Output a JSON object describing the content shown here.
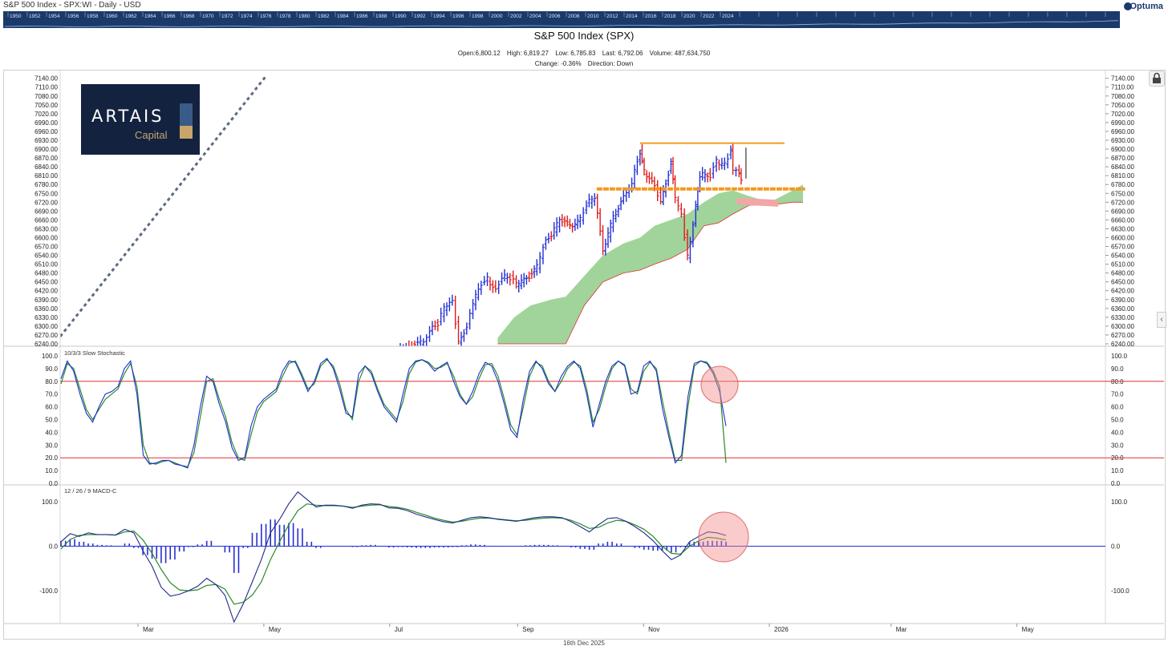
{
  "header": {
    "caption": "S&P 500 Index - SPX:WI - Daily - USD",
    "brand": "Optuma"
  },
  "timeline": {
    "years": [
      "1950",
      "1952",
      "1954",
      "1956",
      "1958",
      "1960",
      "1962",
      "1964",
      "1966",
      "1968",
      "1970",
      "1972",
      "1974",
      "1976",
      "1978",
      "1980",
      "1982",
      "1984",
      "1986",
      "1988",
      "1990",
      "1992",
      "1994",
      "1996",
      "1998",
      "2000",
      "2002",
      "2004",
      "2006",
      "2008",
      "2010",
      "2012",
      "2014",
      "2016",
      "2018",
      "2020",
      "2022",
      "2024"
    ]
  },
  "title": "S&P 500 Index (SPX)",
  "stats": {
    "open": "Open:6,800.12",
    "high": "High: 6,819.27",
    "low": "Low: 6,785.83",
    "last": "Last: 6,792.06",
    "volume": "Volume: 487,634,750",
    "change": "Change: -0.36%",
    "direction": "Direction: Down"
  },
  "logo": {
    "name": "ARTAIS",
    "sub": "Capital"
  },
  "footer_date": "16th Dec 2025",
  "colors": {
    "up_bar": "#1f2fd6",
    "down_bar": "#e01b1b",
    "cloud_green": "#8fcc8a",
    "cloud_red": "#f2a6a6",
    "resistance": "#f39a1d",
    "trend": "#5a6a80",
    "stoch_k": "#1f2fd6",
    "stoch_d": "#2a8a2a",
    "macd": "#1f2a8a",
    "signal": "#2a8a2a",
    "histogram": "#2530d0",
    "level": "#e03030",
    "highlight": "#f28b8b"
  },
  "chart_data": [
    {
      "type": "ohlc",
      "title": "S&P 500 Index (SPX)",
      "ylim": [
        6240,
        7150
      ],
      "yticks": [
        "7140.00",
        "7110.00",
        "7080.00",
        "7050.00",
        "7020.00",
        "6990.00",
        "6960.00",
        "6930.00",
        "6900.00",
        "6870.00",
        "6840.00",
        "6810.00",
        "6780.00",
        "6750.00",
        "6720.00",
        "6690.00",
        "6660.00",
        "6630.00",
        "6600.00",
        "6570.00",
        "6540.00",
        "6510.00",
        "6480.00",
        "6450.00",
        "6420.00",
        "6390.00",
        "6360.00",
        "6330.00",
        "6300.00",
        "6270.00",
        "6240.00"
      ],
      "x_months": [
        "Mar",
        "May",
        "Jul",
        "Sep",
        "Nov",
        "2026",
        "Mar",
        "May"
      ],
      "close_series": [
        [
          "2025-07-01",
          6205
        ],
        [
          "2025-07-08",
          6232
        ],
        [
          "2025-07-15",
          6245
        ],
        [
          "2025-07-18",
          6290
        ],
        [
          "2025-07-22",
          6310
        ],
        [
          "2025-07-25",
          6360
        ],
        [
          "2025-07-29",
          6380
        ],
        [
          "2025-08-01",
          6250
        ],
        [
          "2025-08-05",
          6300
        ],
        [
          "2025-08-08",
          6380
        ],
        [
          "2025-08-12",
          6440
        ],
        [
          "2025-08-15",
          6460
        ],
        [
          "2025-08-19",
          6420
        ],
        [
          "2025-08-22",
          6470
        ],
        [
          "2025-08-26",
          6465
        ],
        [
          "2025-08-29",
          6440
        ],
        [
          "2025-09-03",
          6460
        ],
        [
          "2025-09-08",
          6500
        ],
        [
          "2025-09-11",
          6575
        ],
        [
          "2025-09-15",
          6610
        ],
        [
          "2025-09-19",
          6660
        ],
        [
          "2025-09-24",
          6640
        ],
        [
          "2025-09-29",
          6660
        ],
        [
          "2025-10-02",
          6715
        ],
        [
          "2025-10-06",
          6740
        ],
        [
          "2025-10-10",
          6552
        ],
        [
          "2025-10-15",
          6670
        ],
        [
          "2025-10-20",
          6735
        ],
        [
          "2025-10-24",
          6790
        ],
        [
          "2025-10-28",
          6890
        ],
        [
          "2025-10-30",
          6822
        ],
        [
          "2025-11-04",
          6771
        ],
        [
          "2025-11-07",
          6728
        ],
        [
          "2025-11-12",
          6850
        ],
        [
          "2025-11-14",
          6734
        ],
        [
          "2025-11-17",
          6672
        ],
        [
          "2025-11-20",
          6538
        ],
        [
          "2025-11-24",
          6705
        ],
        [
          "2025-11-26",
          6812
        ],
        [
          "2025-12-01",
          6812
        ],
        [
          "2025-12-04",
          6857
        ],
        [
          "2025-12-08",
          6846
        ],
        [
          "2025-12-11",
          6901
        ],
        [
          "2025-12-12",
          6827
        ],
        [
          "2025-12-15",
          6816
        ],
        [
          "2025-12-16",
          6792
        ]
      ],
      "cloud_top": [
        [
          "2025-08-20",
          6260
        ],
        [
          "2025-08-28",
          6330
        ],
        [
          "2025-09-05",
          6370
        ],
        [
          "2025-09-15",
          6390
        ],
        [
          "2025-09-22",
          6400
        ],
        [
          "2025-10-01",
          6470
        ],
        [
          "2025-10-10",
          6540
        ],
        [
          "2025-10-20",
          6580
        ],
        [
          "2025-10-28",
          6600
        ],
        [
          "2025-11-04",
          6640
        ],
        [
          "2025-11-12",
          6660
        ],
        [
          "2025-11-20",
          6680
        ],
        [
          "2025-11-28",
          6720
        ],
        [
          "2025-12-05",
          6750
        ],
        [
          "2025-12-12",
          6760
        ],
        [
          "2025-12-20",
          6740
        ],
        [
          "2025-12-30",
          6720
        ],
        [
          "2026-01-10",
          6760
        ],
        [
          "2026-01-15",
          6780
        ]
      ],
      "cloud_bottom": [
        [
          "2025-08-20",
          6240
        ],
        [
          "2025-09-15",
          6240
        ],
        [
          "2025-09-22",
          6240
        ],
        [
          "2025-10-01",
          6370
        ],
        [
          "2025-10-10",
          6450
        ],
        [
          "2025-10-20",
          6480
        ],
        [
          "2025-10-28",
          6490
        ],
        [
          "2025-11-04",
          6510
        ],
        [
          "2025-11-12",
          6530
        ],
        [
          "2025-11-20",
          6560
        ],
        [
          "2025-11-28",
          6640
        ],
        [
          "2025-12-05",
          6650
        ],
        [
          "2025-12-12",
          6680
        ],
        [
          "2025-12-20",
          6710
        ],
        [
          "2025-12-30",
          6710
        ],
        [
          "2026-01-10",
          6720
        ],
        [
          "2026-01-15",
          6720
        ]
      ],
      "resistance_line": 6920,
      "support_line": 6765,
      "trendline": [
        [
          "2025-01-20",
          6265
        ],
        [
          "2025-04-30",
          7150
        ]
      ]
    },
    {
      "type": "line",
      "title": "10/3/3 Slow Stochastic",
      "ylim": [
        0,
        100
      ],
      "yticks": [
        "100.0",
        "90.0",
        "80.0",
        "70.0",
        "60.0",
        "50.0",
        "40.0",
        "30.0",
        "20.0",
        "10.0",
        "0.0"
      ],
      "levels": [
        80,
        20
      ],
      "series": [
        {
          "name": "%K",
          "values": [
            82,
            96,
            88,
            70,
            55,
            48,
            60,
            70,
            72,
            76,
            90,
            96,
            70,
            22,
            15,
            16,
            18,
            18,
            15,
            14,
            12,
            30,
            60,
            84,
            80,
            62,
            48,
            28,
            18,
            20,
            45,
            60,
            66,
            70,
            74,
            88,
            96,
            95,
            84,
            72,
            80,
            94,
            98,
            90,
            74,
            55,
            52,
            86,
            92,
            86,
            72,
            60,
            54,
            48,
            70,
            90,
            96,
            97,
            94,
            88,
            92,
            95,
            80,
            68,
            62,
            72,
            86,
            95,
            92,
            80,
            62,
            42,
            36,
            66,
            88,
            96,
            90,
            78,
            72,
            84,
            92,
            96,
            90,
            70,
            44,
            62,
            80,
            92,
            96,
            92,
            70,
            72,
            92,
            96,
            88,
            58,
            36,
            16,
            22,
            68,
            94,
            96,
            94,
            86,
            72,
            45
          ]
        },
        {
          "name": "%D",
          "values": [
            78,
            94,
            90,
            74,
            58,
            50,
            58,
            66,
            70,
            74,
            86,
            94,
            76,
            30,
            16,
            15,
            17,
            18,
            16,
            14,
            13,
            24,
            52,
            80,
            82,
            66,
            52,
            32,
            20,
            18,
            38,
            56,
            64,
            68,
            72,
            84,
            94,
            96,
            86,
            74,
            78,
            92,
            97,
            92,
            78,
            58,
            50,
            80,
            92,
            88,
            74,
            62,
            56,
            50,
            64,
            86,
            95,
            97,
            95,
            90,
            91,
            94,
            84,
            70,
            62,
            68,
            82,
            93,
            94,
            84,
            66,
            46,
            38,
            60,
            84,
            95,
            92,
            80,
            72,
            80,
            90,
            95,
            92,
            74,
            48,
            58,
            76,
            90,
            96,
            93,
            74,
            70,
            88,
            95,
            90,
            64,
            40,
            18,
            18,
            60,
            92,
            96,
            95,
            88,
            76,
            16
          ]
        }
      ]
    },
    {
      "type": "line",
      "title": "12 / 26 / 9 MACD-C",
      "ylim": [
        -170,
        125
      ],
      "yticks": [
        "100.0",
        "0.0",
        "-100.0"
      ],
      "series": [
        {
          "name": "MACD",
          "values": [
            10,
            28,
            22,
            30,
            26,
            26,
            25,
            38,
            30,
            -10,
            -45,
            -92,
            -112,
            -108,
            -100,
            -90,
            -72,
            -86,
            -110,
            -170,
            -130,
            -80,
            -30,
            30,
            60,
            95,
            122,
            105,
            88,
            92,
            92,
            90,
            85,
            92,
            95,
            94,
            86,
            85,
            80,
            72,
            66,
            60,
            55,
            52,
            58,
            64,
            66,
            64,
            60,
            58,
            56,
            60,
            64,
            66,
            66,
            64,
            55,
            44,
            32,
            48,
            62,
            64,
            56,
            44,
            30,
            12,
            -10,
            -30,
            -20,
            10,
            22,
            32,
            30,
            24
          ]
        },
        {
          "name": "Signal",
          "values": [
            -6,
            15,
            24,
            26,
            26,
            26,
            25,
            32,
            34,
            14,
            -16,
            -52,
            -82,
            -98,
            -100,
            -98,
            -88,
            -86,
            -96,
            -130,
            -126,
            -110,
            -80,
            -30,
            10,
            48,
            80,
            95,
            92,
            91,
            91,
            90,
            87,
            90,
            92,
            93,
            89,
            87,
            83,
            76,
            70,
            63,
            58,
            54,
            56,
            60,
            63,
            63,
            61,
            59,
            57,
            58,
            61,
            63,
            64,
            63,
            58,
            50,
            40,
            42,
            52,
            58,
            56,
            48,
            38,
            22,
            0,
            -16,
            -18,
            0,
            12,
            20,
            18,
            14
          ]
        },
        {
          "name": "Histogram",
          "values": [
            12,
            16,
            10,
            6,
            3,
            2,
            1,
            6,
            -4,
            -20,
            -28,
            -38,
            -30,
            -12,
            -2,
            4,
            12,
            0,
            -14,
            -60,
            -4,
            30,
            50,
            60,
            48,
            52,
            40,
            10,
            -4,
            0,
            1,
            0,
            -2,
            2,
            3,
            1,
            -3,
            -2,
            -3,
            -4,
            -4,
            -3,
            -3,
            -2,
            2,
            4,
            3,
            1,
            -1,
            -1,
            -1,
            2,
            3,
            3,
            2,
            1,
            -3,
            -6,
            -8,
            6,
            10,
            6,
            0,
            -4,
            -8,
            -10,
            -10,
            -14,
            -2,
            10,
            10,
            12,
            12,
            10
          ]
        }
      ]
    }
  ]
}
